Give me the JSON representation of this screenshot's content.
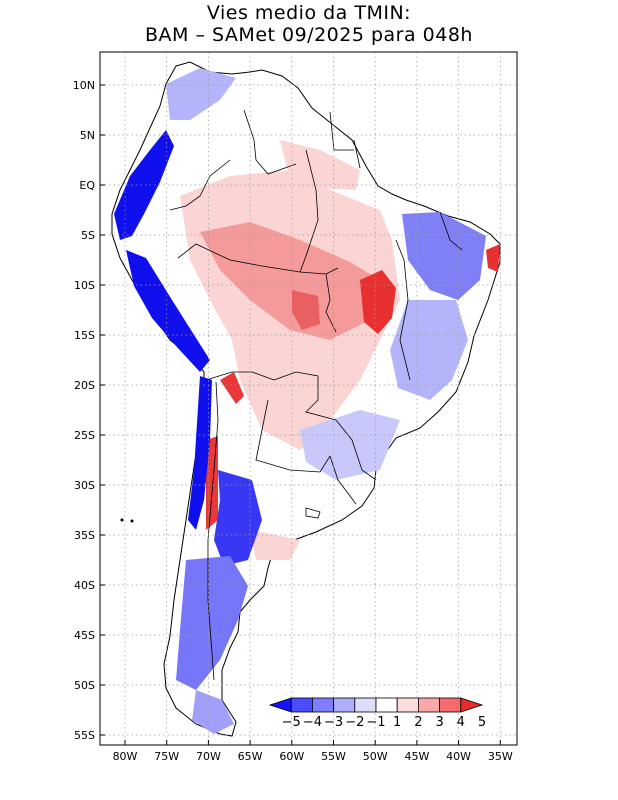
{
  "title_line1": "Vies medio da TMIN:",
  "title_line2": "BAM – SAMet 09/2025  para 048h",
  "lat_labels": [
    "10N",
    "5N",
    "EQ",
    "5S",
    "10S",
    "15S",
    "20S",
    "25S",
    "30S",
    "35S",
    "40S",
    "45S",
    "50S",
    "55S"
  ],
  "lon_labels": [
    "80W",
    "75W",
    "70W",
    "65W",
    "60W",
    "55W",
    "50W",
    "45W",
    "40W",
    "35W"
  ],
  "colorbar": {
    "labels": [
      "−5",
      "−4",
      "−3",
      "−2",
      "−1",
      "1",
      "2",
      "3",
      "4",
      "5"
    ],
    "colors": [
      "#1414ff",
      "#4b4bff",
      "#7d7dff",
      "#aeaefd",
      "#dcdcfc",
      "#ffffff",
      "#fcdcdc",
      "#fba8a8",
      "#f56a6a",
      "#e82b2b"
    ]
  },
  "colors": {
    "land_neutral": "#ffffff",
    "cold_strong": "#1010ee",
    "cold_mid": "#6e6ef6",
    "cold_light": "#c8c8fb",
    "warm_light": "#fbd4d4",
    "warm_mid": "#f59a9a",
    "warm_strong": "#e83030"
  }
}
